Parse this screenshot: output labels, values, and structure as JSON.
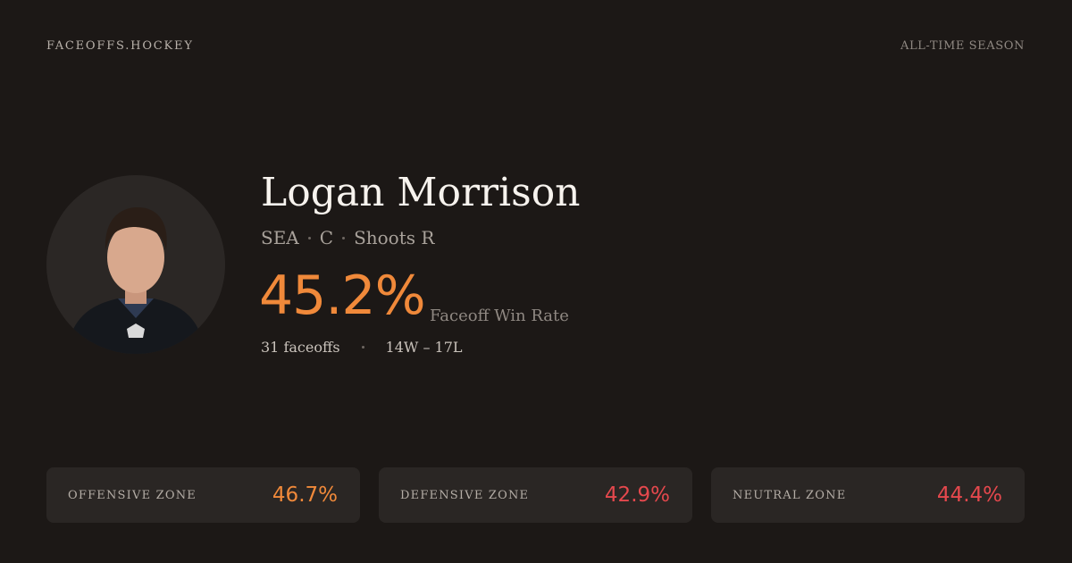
{
  "header": {
    "brand": "FACEOFFS.HOCKEY",
    "season": "ALL-TIME SEASON"
  },
  "player": {
    "name": "Logan Morrison",
    "team": "SEA",
    "position": "C",
    "shoots": "Shoots R"
  },
  "summary": {
    "win_rate": "45.2%",
    "win_rate_label": "Faceoff Win Rate",
    "faceoffs": "31 faceoffs",
    "record": "14W – 17L"
  },
  "zones": [
    {
      "label": "OFFENSIVE ZONE",
      "value": "46.7%"
    },
    {
      "label": "DEFENSIVE ZONE",
      "value": "42.9%"
    },
    {
      "label": "NEUTRAL ZONE",
      "value": "44.4%"
    }
  ]
}
